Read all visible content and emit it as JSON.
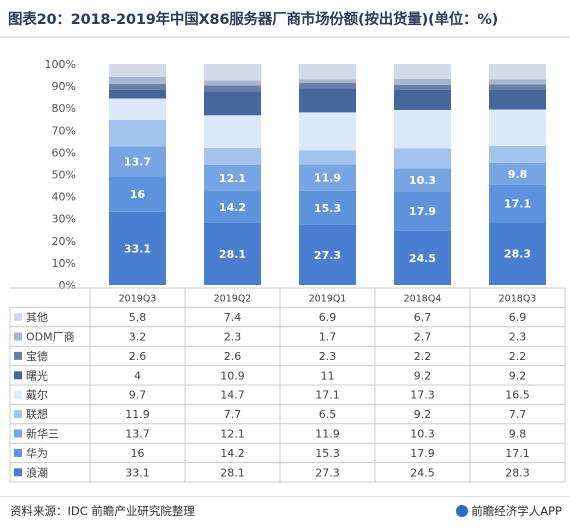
{
  "title": "图表20：2018-2019年中国X86服务器厂商市场份额(按出货量)(单位：%)",
  "source": "资料来源：IDC 前瞻产业研究院整理",
  "brand": "前瞻经济学人APP",
  "chart_data": {
    "type": "bar",
    "stacked": true,
    "categories": [
      "2019Q3",
      "2019Q2",
      "2019Q1",
      "2018Q4",
      "2018Q3"
    ],
    "ylim": [
      0,
      100
    ],
    "yticks": [
      "0%",
      "10%",
      "20%",
      "30%",
      "40%",
      "50%",
      "60%",
      "70%",
      "80%",
      "90%",
      "100%"
    ],
    "grid": false,
    "series": [
      {
        "name": "浪潮",
        "color": "#4a7fcf",
        "values": [
          33.1,
          28.1,
          27.3,
          24.5,
          28.3
        ]
      },
      {
        "name": "华为",
        "color": "#5d92dc",
        "values": [
          16,
          14.2,
          15.3,
          17.9,
          17.1
        ]
      },
      {
        "name": "新华三",
        "color": "#77a5e2",
        "values": [
          13.7,
          12.1,
          11.9,
          10.3,
          9.8
        ]
      },
      {
        "name": "联想",
        "color": "#a3c4ee",
        "values": [
          11.9,
          7.7,
          6.5,
          9.2,
          7.7
        ]
      },
      {
        "name": "戴尔",
        "color": "#dce9fa",
        "values": [
          9.7,
          14.7,
          17.1,
          17.3,
          16.5
        ]
      },
      {
        "name": "曙光",
        "color": "#45679c",
        "values": [
          4,
          10.9,
          11,
          9.2,
          9.2
        ]
      },
      {
        "name": "宝德",
        "color": "#6a7fa8",
        "values": [
          2.6,
          2.6,
          2.3,
          2.2,
          2.2
        ]
      },
      {
        "name": "ODM厂商",
        "color": "#a8b6cf",
        "values": [
          3.2,
          2.3,
          1.7,
          2.7,
          2.3
        ]
      },
      {
        "name": "其他",
        "color": "#d3dbe8",
        "values": [
          5.8,
          7.4,
          6.9,
          6.7,
          6.9
        ]
      }
    ],
    "labeled_series": [
      "浪潮",
      "华为",
      "新华三"
    ],
    "table_row_order": [
      "其他",
      "ODM厂商",
      "宝德",
      "曙光",
      "戴尔",
      "联想",
      "新华三",
      "华为",
      "浪潮"
    ]
  }
}
